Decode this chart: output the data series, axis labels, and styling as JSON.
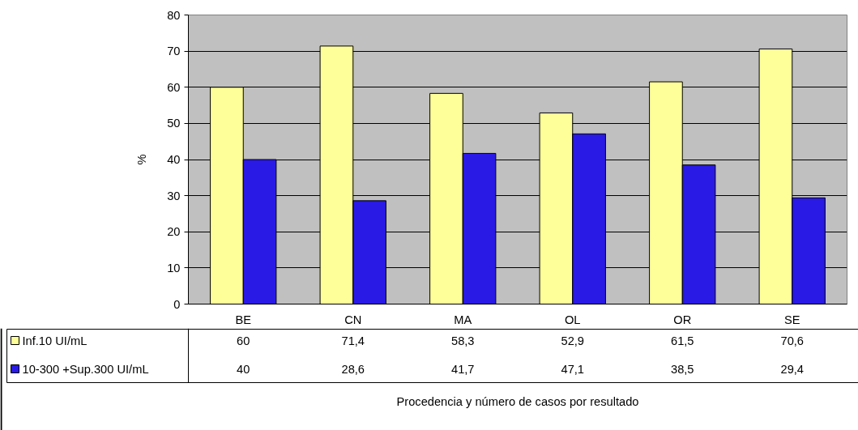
{
  "chart_data": {
    "type": "bar",
    "ylabel": "%",
    "categories": [
      "BE",
      "CN",
      "MA",
      "OL",
      "OR",
      "SE"
    ],
    "series": [
      {
        "name": "Inf.10 UI/mL",
        "color": "#ffff99",
        "values": [
          60,
          71.4,
          58.3,
          52.9,
          61.5,
          70.6
        ],
        "value_labels": [
          "60",
          "71,4",
          "58,3",
          "52,9",
          "61,5",
          "70,6"
        ]
      },
      {
        "name": "10-300 +Sup.300 UI/mL",
        "color": "#2a1ae6",
        "values": [
          40,
          28.6,
          41.7,
          47.1,
          38.5,
          29.4
        ],
        "value_labels": [
          "40",
          "28,6",
          "41,7",
          "47,1",
          "38,5",
          "29,4"
        ]
      }
    ],
    "annotations": [
      "Procedencia y número de casos por resultado"
    ],
    "ylim": [
      0,
      80
    ],
    "yticks": [
      0,
      10,
      20,
      30,
      40,
      50,
      60,
      70,
      80
    ],
    "grid": "y",
    "legend": "bottom",
    "data_labels": true
  }
}
